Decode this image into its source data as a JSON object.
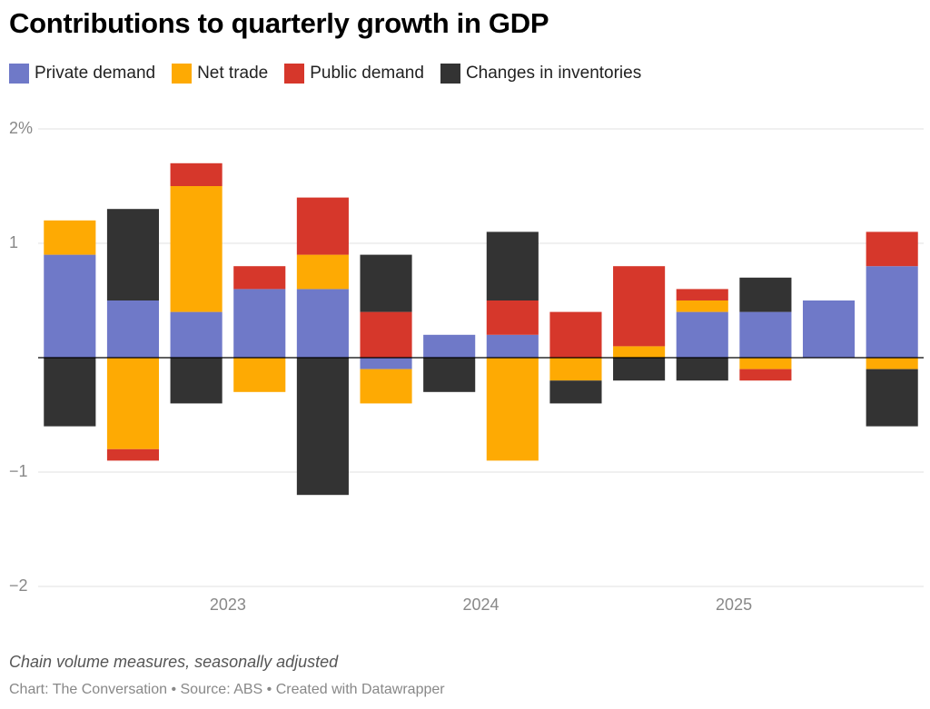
{
  "chart_data": {
    "type": "stacked_bar",
    "title": "Contributions to quarterly growth in GDP",
    "subtitle": "Chain volume measures, seasonally adjusted",
    "source": "Chart: The Conversation • Source: ABS • Created with Datawrapper",
    "categories": [
      null,
      null,
      null,
      null,
      null,
      null,
      null,
      null,
      null,
      null,
      null,
      null,
      null,
      null
    ],
    "xticks": [
      {
        "value": 2.5,
        "label": "2023"
      },
      {
        "value": 6.5,
        "label": "2024"
      },
      {
        "value": 10.5,
        "label": "2025"
      }
    ],
    "ylim": [
      -2,
      2
    ],
    "yticks": [
      {
        "value": 2,
        "label": "2%"
      },
      1,
      {
        "value": -1,
        "label": "−1"
      },
      {
        "value": -2,
        "label": "−2"
      }
    ],
    "grid": true,
    "series": [
      {
        "name": "Private demand",
        "color": "#6f79c8",
        "values": [
          0.9,
          0.5,
          0.4,
          0.6,
          0.6,
          -0.1,
          0.2,
          0.2,
          0,
          0,
          0.4,
          0.4,
          0.5,
          0.8
        ]
      },
      {
        "name": "Net trade",
        "color": "#feaa03",
        "values": [
          0.3,
          -0.8,
          1.1,
          -0.3,
          0.3,
          -0.3,
          0,
          -0.9,
          -0.2,
          0.1,
          0.1,
          -0.1,
          0,
          -0.1
        ]
      },
      {
        "name": "Public demand",
        "color": "#d6372b",
        "values": [
          0,
          -0.1,
          0.2,
          0.2,
          0.5,
          0.4,
          0,
          0.3,
          0.4,
          0.7,
          0.1,
          -0.1,
          0,
          0.3
        ]
      },
      {
        "name": "Changes in inventories",
        "color": "#333333",
        "values": [
          -0.6,
          0.8,
          -0.4,
          0,
          -1.2,
          0.5,
          -0.3,
          0.6,
          -0.2,
          -0.2,
          -0.2,
          0.3,
          0,
          -0.5
        ]
      }
    ]
  }
}
